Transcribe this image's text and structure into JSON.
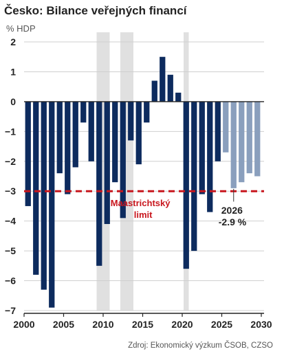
{
  "header": {
    "title": "Česko: Bilance veřejných financí",
    "subtitle": "% HDP"
  },
  "footer": {
    "source": "Zdroj: Ekonomický výzkum ČSOB, CZSO"
  },
  "colors": {
    "actual": "#0d2b5e",
    "forecast": "#8a9fbd",
    "limit_line": "#c8161d",
    "shading": "#e0e0e0",
    "grid": "#cfcfcf"
  },
  "chart_data": {
    "type": "bar",
    "title": "Česko: Bilance veřejných financí",
    "ylabel": "% HDP",
    "xlim": [
      2000,
      2030
    ],
    "ylim": [
      -7,
      2
    ],
    "x_ticks": [
      2000,
      2005,
      2010,
      2015,
      2020,
      2025,
      2030
    ],
    "y_ticks": [
      2,
      1,
      0,
      -1,
      -2,
      -3,
      -4,
      -5,
      -6,
      -7
    ],
    "grid": true,
    "series": [
      {
        "status": "actual",
        "x": [
          2000,
          2001,
          2002,
          2003,
          2004,
          2005,
          2006,
          2007,
          2008,
          2009,
          2010,
          2011,
          2012,
          2013,
          2014,
          2015,
          2016,
          2017,
          2018,
          2019,
          2020,
          2021,
          2022,
          2023,
          2024
        ],
        "values": [
          -3.5,
          -5.8,
          -6.3,
          -6.9,
          -2.4,
          -3.1,
          -2.2,
          -0.7,
          -2.0,
          -5.5,
          -4.1,
          -2.7,
          -3.9,
          -1.3,
          -2.1,
          -0.7,
          0.7,
          1.5,
          0.9,
          0.3,
          -5.6,
          -5.0,
          -3.1,
          -3.7,
          -2.0
        ]
      },
      {
        "status": "forecast",
        "x": [
          2025,
          2026,
          2027,
          2028,
          2029
        ],
        "values": [
          -1.7,
          -2.9,
          -2.7,
          -2.4,
          -2.5
        ]
      }
    ],
    "shaded_periods": [
      [
        2009,
        2011
      ],
      [
        2012,
        2014
      ],
      [
        2020,
        2021
      ]
    ],
    "reference_line": {
      "value": -3,
      "label_line1": "Maastrichtský",
      "label_line2": "limit"
    },
    "annotation": {
      "x": 2026,
      "line1": "2026",
      "line2": "-2.9 %"
    }
  }
}
